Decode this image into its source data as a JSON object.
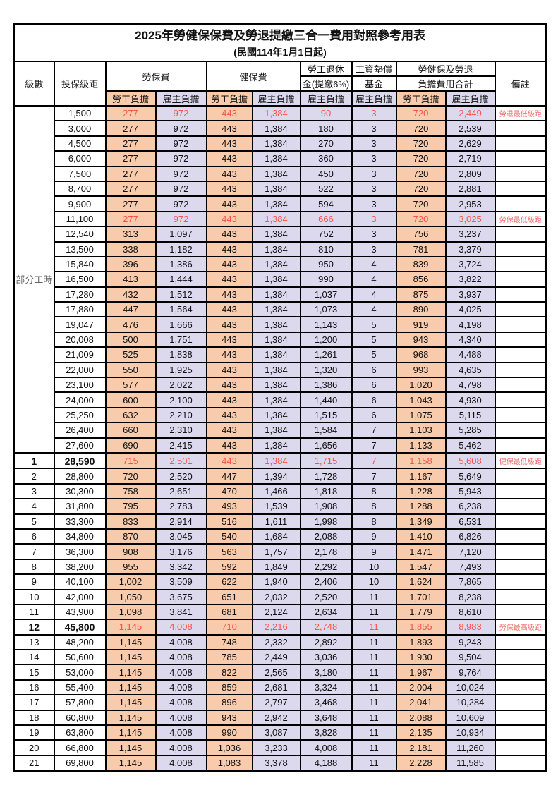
{
  "document": {
    "title": "2025年勞健保保費及勞退提繳三合一費用對照參考用表",
    "subtitle": "(民國114年1月1日起)"
  },
  "header": {
    "level": "級數",
    "bracket": "投保級距",
    "labor_insurance": "勞保費",
    "health_insurance": "健保費",
    "pension_line1": "勞工退休",
    "pension_line2": "金(提繳6%)",
    "wage_fund_line1": "工資墊償",
    "wage_fund_line2": "基金",
    "total_line1": "勞健保及勞退",
    "total_line2": "負擔費用合計",
    "employee_label": "勞工負擔",
    "employer_label": "雇主負擔",
    "remark": "備註"
  },
  "table": {
    "part_time_label": "部分工時",
    "part_time_rowspan": 23,
    "columns": [
      "level",
      "bracket",
      "labor_emp",
      "labor_er",
      "health_emp",
      "health_er",
      "pension_er",
      "wage_fund_er",
      "total_emp",
      "total_er",
      "remark"
    ],
    "highlight_rows": [
      0,
      7,
      23,
      34
    ],
    "bold_rows": [
      23,
      34
    ],
    "section_divider_row": 23,
    "rows": [
      [
        "",
        "1,500",
        "277",
        "972",
        "443",
        "1,384",
        "90",
        "3",
        "720",
        "2,449",
        "勞退最低級距"
      ],
      [
        "",
        "3,000",
        "277",
        "972",
        "443",
        "1,384",
        "180",
        "3",
        "720",
        "2,539",
        ""
      ],
      [
        "",
        "4,500",
        "277",
        "972",
        "443",
        "1,384",
        "270",
        "3",
        "720",
        "2,629",
        ""
      ],
      [
        "",
        "6,000",
        "277",
        "972",
        "443",
        "1,384",
        "360",
        "3",
        "720",
        "2,719",
        ""
      ],
      [
        "",
        "7,500",
        "277",
        "972",
        "443",
        "1,384",
        "450",
        "3",
        "720",
        "2,809",
        ""
      ],
      [
        "",
        "8,700",
        "277",
        "972",
        "443",
        "1,384",
        "522",
        "3",
        "720",
        "2,881",
        ""
      ],
      [
        "",
        "9,900",
        "277",
        "972",
        "443",
        "1,384",
        "594",
        "3",
        "720",
        "2,953",
        ""
      ],
      [
        "",
        "11,100",
        "277",
        "972",
        "443",
        "1,384",
        "666",
        "3",
        "720",
        "3,025",
        "勞保最低級距"
      ],
      [
        "",
        "12,540",
        "313",
        "1,097",
        "443",
        "1,384",
        "752",
        "3",
        "756",
        "3,237",
        ""
      ],
      [
        "",
        "13,500",
        "338",
        "1,182",
        "443",
        "1,384",
        "810",
        "3",
        "781",
        "3,379",
        ""
      ],
      [
        "",
        "15,840",
        "396",
        "1,386",
        "443",
        "1,384",
        "950",
        "4",
        "839",
        "3,724",
        ""
      ],
      [
        "",
        "16,500",
        "413",
        "1,444",
        "443",
        "1,384",
        "990",
        "4",
        "856",
        "3,822",
        ""
      ],
      [
        "",
        "17,280",
        "432",
        "1,512",
        "443",
        "1,384",
        "1,037",
        "4",
        "875",
        "3,937",
        ""
      ],
      [
        "",
        "17,880",
        "447",
        "1,564",
        "443",
        "1,384",
        "1,073",
        "4",
        "890",
        "4,025",
        ""
      ],
      [
        "",
        "19,047",
        "476",
        "1,666",
        "443",
        "1,384",
        "1,143",
        "5",
        "919",
        "4,198",
        ""
      ],
      [
        "",
        "20,008",
        "500",
        "1,751",
        "443",
        "1,384",
        "1,200",
        "5",
        "943",
        "4,340",
        ""
      ],
      [
        "",
        "21,009",
        "525",
        "1,838",
        "443",
        "1,384",
        "1,261",
        "5",
        "968",
        "4,488",
        ""
      ],
      [
        "",
        "22,000",
        "550",
        "1,925",
        "443",
        "1,384",
        "1,320",
        "6",
        "993",
        "4,635",
        ""
      ],
      [
        "",
        "23,100",
        "577",
        "2,022",
        "443",
        "1,384",
        "1,386",
        "6",
        "1,020",
        "4,798",
        ""
      ],
      [
        "",
        "24,000",
        "600",
        "2,100",
        "443",
        "1,384",
        "1,440",
        "6",
        "1,043",
        "4,930",
        ""
      ],
      [
        "",
        "25,250",
        "632",
        "2,210",
        "443",
        "1,384",
        "1,515",
        "6",
        "1,075",
        "5,115",
        ""
      ],
      [
        "",
        "26,400",
        "660",
        "2,310",
        "443",
        "1,384",
        "1,584",
        "7",
        "1,103",
        "5,285",
        ""
      ],
      [
        "",
        "27,600",
        "690",
        "2,415",
        "443",
        "1,384",
        "1,656",
        "7",
        "1,133",
        "5,462",
        ""
      ],
      [
        "1",
        "28,590",
        "715",
        "2,501",
        "443",
        "1,384",
        "1,715",
        "7",
        "1,158",
        "5,608",
        "健保最低級距"
      ],
      [
        "2",
        "28,800",
        "720",
        "2,520",
        "447",
        "1,394",
        "1,728",
        "7",
        "1,167",
        "5,649",
        ""
      ],
      [
        "3",
        "30,300",
        "758",
        "2,651",
        "470",
        "1,466",
        "1,818",
        "8",
        "1,228",
        "5,943",
        ""
      ],
      [
        "4",
        "31,800",
        "795",
        "2,783",
        "493",
        "1,539",
        "1,908",
        "8",
        "1,288",
        "6,238",
        ""
      ],
      [
        "5",
        "33,300",
        "833",
        "2,914",
        "516",
        "1,611",
        "1,998",
        "8",
        "1,349",
        "6,531",
        ""
      ],
      [
        "6",
        "34,800",
        "870",
        "3,045",
        "540",
        "1,684",
        "2,088",
        "9",
        "1,410",
        "6,826",
        ""
      ],
      [
        "7",
        "36,300",
        "908",
        "3,176",
        "563",
        "1,757",
        "2,178",
        "9",
        "1,471",
        "7,120",
        ""
      ],
      [
        "8",
        "38,200",
        "955",
        "3,342",
        "592",
        "1,849",
        "2,292",
        "10",
        "1,547",
        "7,493",
        ""
      ],
      [
        "9",
        "40,100",
        "1,002",
        "3,509",
        "622",
        "1,940",
        "2,406",
        "10",
        "1,624",
        "7,865",
        ""
      ],
      [
        "10",
        "42,000",
        "1,050",
        "3,675",
        "651",
        "2,032",
        "2,520",
        "11",
        "1,701",
        "8,238",
        ""
      ],
      [
        "11",
        "43,900",
        "1,098",
        "3,841",
        "681",
        "2,124",
        "2,634",
        "11",
        "1,779",
        "8,610",
        ""
      ],
      [
        "12",
        "45,800",
        "1,145",
        "4,008",
        "710",
        "2,216",
        "2,748",
        "11",
        "1,855",
        "8,983",
        "勞保最高級距"
      ],
      [
        "13",
        "48,200",
        "1,145",
        "4,008",
        "748",
        "2,332",
        "2,892",
        "11",
        "1,893",
        "9,243",
        ""
      ],
      [
        "14",
        "50,600",
        "1,145",
        "4,008",
        "785",
        "2,449",
        "3,036",
        "11",
        "1,930",
        "9,504",
        ""
      ],
      [
        "15",
        "53,000",
        "1,145",
        "4,008",
        "822",
        "2,565",
        "3,180",
        "11",
        "1,967",
        "9,764",
        ""
      ],
      [
        "16",
        "55,400",
        "1,145",
        "4,008",
        "859",
        "2,681",
        "3,324",
        "11",
        "2,004",
        "10,024",
        ""
      ],
      [
        "17",
        "57,800",
        "1,145",
        "4,008",
        "896",
        "2,797",
        "3,468",
        "11",
        "2,041",
        "10,284",
        ""
      ],
      [
        "18",
        "60,800",
        "1,145",
        "4,008",
        "943",
        "2,942",
        "3,648",
        "11",
        "2,088",
        "10,609",
        ""
      ],
      [
        "19",
        "63,800",
        "1,145",
        "4,008",
        "990",
        "3,087",
        "3,828",
        "11",
        "2,135",
        "10,934",
        ""
      ],
      [
        "20",
        "66,800",
        "1,145",
        "4,008",
        "1,036",
        "3,233",
        "4,008",
        "11",
        "2,181",
        "11,260",
        ""
      ],
      [
        "21",
        "69,800",
        "1,145",
        "4,008",
        "1,083",
        "3,378",
        "4,188",
        "11",
        "2,228",
        "11,585",
        ""
      ]
    ]
  },
  "colors": {
    "employee_bg": "#F8CBAD",
    "employer_bg": "#DCD9EF",
    "highlight_value_text": "#FB5149",
    "remark_text": "#F26A6A",
    "grid_border": "#000000",
    "part_time_text": "#666666"
  }
}
